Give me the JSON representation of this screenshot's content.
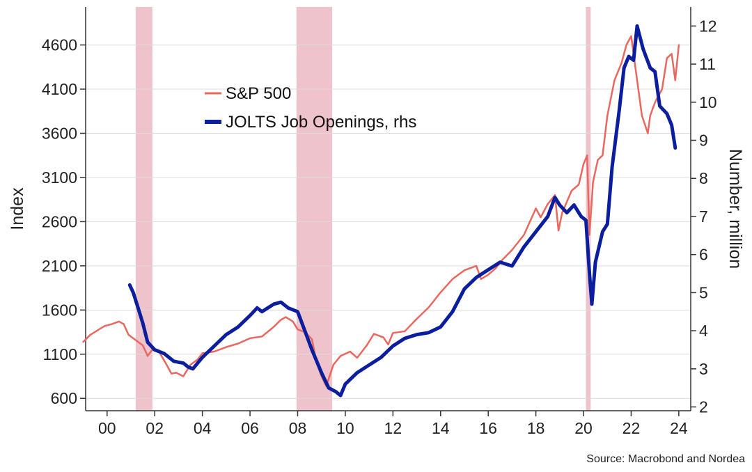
{
  "chart_data": {
    "type": "line",
    "title": "",
    "source": "Source: Macrobond and Nordea",
    "xlabel": "",
    "ylabel_left": "Index",
    "ylabel_right": "Number, million",
    "x_ticks": [
      "00",
      "02",
      "04",
      "06",
      "08",
      "10",
      "12",
      "14",
      "16",
      "18",
      "20",
      "22",
      "24"
    ],
    "x_tick_values": [
      2000,
      2002,
      2004,
      2006,
      2008,
      2010,
      2012,
      2014,
      2016,
      2018,
      2020,
      2022,
      2024
    ],
    "xlim": [
      1999.1,
      2024.5
    ],
    "y_left_ticks": [
      600,
      1100,
      1600,
      2100,
      2600,
      3100,
      3600,
      4100,
      4600
    ],
    "ylim_left": [
      460,
      5030
    ],
    "y_right_ticks": [
      2,
      3,
      4,
      5,
      6,
      7,
      8,
      9,
      10,
      11,
      12
    ],
    "ylim_right": [
      1.9,
      12.5
    ],
    "grid": "horizontal",
    "legend_position": "upper-left",
    "recessions": [
      [
        2001.2,
        2001.9
      ],
      [
        2007.95,
        2009.45
      ],
      [
        2020.1,
        2020.3
      ]
    ],
    "colors": {
      "sp500": "#e8685f",
      "jolts": "#0a1e9e",
      "recession": "#eec3cb",
      "grid": "#dcdcdc",
      "axis": "#333333"
    },
    "series": [
      {
        "name": "S&P 500",
        "axis": "left",
        "color": "#e8685f",
        "x": [
          1999.0,
          1999.3,
          1999.6,
          1999.9,
          2000.2,
          2000.5,
          2000.7,
          2000.9,
          2001.2,
          2001.5,
          2001.7,
          2001.9,
          2002.2,
          2002.5,
          2002.7,
          2002.9,
          2003.2,
          2003.5,
          2003.8,
          2004.0,
          2004.5,
          2005.0,
          2005.5,
          2006.0,
          2006.5,
          2007.0,
          2007.3,
          2007.5,
          2007.8,
          2008.0,
          2008.3,
          2008.6,
          2008.8,
          2009.0,
          2009.2,
          2009.5,
          2009.8,
          2010.2,
          2010.5,
          2010.9,
          2011.2,
          2011.6,
          2011.8,
          2012.0,
          2012.5,
          2013.0,
          2013.5,
          2014.0,
          2014.5,
          2015.0,
          2015.5,
          2015.7,
          2016.0,
          2016.3,
          2016.6,
          2017.0,
          2017.5,
          2018.0,
          2018.2,
          2018.5,
          2018.8,
          2018.95,
          2019.1,
          2019.5,
          2019.8,
          2020.0,
          2020.15,
          2020.25,
          2020.4,
          2020.6,
          2020.8,
          2021.0,
          2021.3,
          2021.6,
          2021.8,
          2022.0,
          2022.2,
          2022.45,
          2022.7,
          2022.8,
          2023.0,
          2023.3,
          2023.5,
          2023.7,
          2023.85,
          2024.0
        ],
        "values": [
          1240,
          1320,
          1370,
          1420,
          1440,
          1470,
          1440,
          1320,
          1260,
          1200,
          1080,
          1150,
          1120,
          980,
          880,
          890,
          850,
          980,
          1040,
          1110,
          1130,
          1180,
          1220,
          1280,
          1300,
          1410,
          1490,
          1520,
          1470,
          1380,
          1350,
          1270,
          1000,
          850,
          740,
          980,
          1080,
          1130,
          1060,
          1200,
          1330,
          1290,
          1210,
          1340,
          1360,
          1500,
          1630,
          1800,
          1950,
          2050,
          2100,
          1950,
          2000,
          2070,
          2170,
          2280,
          2450,
          2750,
          2650,
          2800,
          2900,
          2500,
          2700,
          2950,
          3020,
          3250,
          3350,
          2450,
          3050,
          3300,
          3350,
          3800,
          4200,
          4400,
          4600,
          4700,
          4300,
          3800,
          3600,
          3800,
          3950,
          4100,
          4450,
          4500,
          4200,
          4600
        ]
      },
      {
        "name": "JOLTS Job Openings, rhs",
        "axis": "right",
        "color": "#0a1e9e",
        "x": [
          2000.95,
          2001.1,
          2001.3,
          2001.5,
          2001.7,
          2002.0,
          2002.4,
          2002.8,
          2003.2,
          2003.4,
          2003.6,
          2004.0,
          2004.5,
          2005.0,
          2005.5,
          2006.0,
          2006.3,
          2006.5,
          2007.0,
          2007.3,
          2007.6,
          2008.0,
          2008.3,
          2008.6,
          2009.0,
          2009.3,
          2009.6,
          2009.8,
          2010.0,
          2010.5,
          2011.0,
          2011.5,
          2012.0,
          2012.5,
          2013.0,
          2013.5,
          2014.0,
          2014.5,
          2015.0,
          2015.5,
          2016.0,
          2016.5,
          2017.0,
          2017.5,
          2018.0,
          2018.5,
          2018.8,
          2019.0,
          2019.3,
          2019.6,
          2019.9,
          2020.1,
          2020.25,
          2020.35,
          2020.5,
          2020.8,
          2021.0,
          2021.2,
          2021.5,
          2021.7,
          2021.9,
          2022.1,
          2022.25,
          2022.5,
          2022.8,
          2023.0,
          2023.2,
          2023.5,
          2023.7,
          2023.85
        ],
        "values": [
          5.2,
          5.0,
          4.6,
          4.2,
          3.7,
          3.5,
          3.4,
          3.2,
          3.15,
          3.05,
          3.0,
          3.3,
          3.6,
          3.9,
          4.1,
          4.4,
          4.6,
          4.5,
          4.7,
          4.75,
          4.6,
          4.5,
          4.0,
          3.5,
          2.9,
          2.5,
          2.4,
          2.3,
          2.6,
          2.9,
          3.1,
          3.3,
          3.6,
          3.8,
          3.9,
          3.95,
          4.1,
          4.5,
          5.1,
          5.4,
          5.6,
          5.8,
          5.7,
          6.2,
          6.6,
          7.0,
          7.5,
          7.3,
          7.1,
          7.3,
          7.0,
          6.9,
          5.5,
          4.7,
          5.8,
          6.6,
          6.8,
          8.3,
          9.8,
          10.9,
          11.2,
          11.1,
          12.0,
          11.4,
          10.9,
          10.8,
          9.9,
          9.7,
          9.4,
          8.8
        ]
      }
    ]
  }
}
